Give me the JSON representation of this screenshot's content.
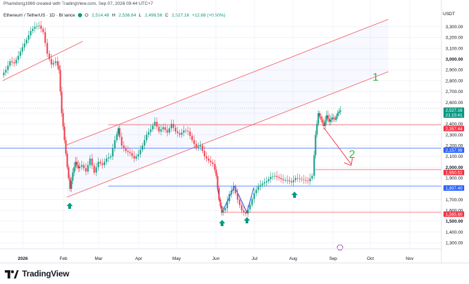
{
  "header": {
    "created_by": "Phamdong1969 created with TradingView.com, Sep 07, 2026 09:44 UTC+7"
  },
  "symbol": {
    "name": "Ethereum / TetherUS · 1D · Binance",
    "open_key": "O",
    "open": "2,514.48",
    "high_key": "H",
    "high": "2,536.64",
    "low_key": "L",
    "low": "2,498.56",
    "close_key": "C",
    "close": "2,527.16",
    "change": "+12.68 (+0.50%)",
    "up_color": "#089981",
    "down_color": "#f23645"
  },
  "currency": "USDT",
  "price_axis": {
    "ticks": [
      "3,300.00",
      "3,200.00",
      "3,100.00",
      "3,000.00",
      "2,900.00",
      "2,800.00",
      "2,700.00",
      "2,600.00",
      "2,500.00",
      "2,400.00",
      "2,300.00",
      "2,200.00",
      "2,100.00",
      "2,000.00",
      "1,900.00",
      "1,800.00",
      "1,700.00",
      "1,600.00",
      "1,500.00",
      "1,400.00",
      "1,300.00"
    ],
    "bold_ticks": [
      "3,000.00",
      "2,000.00",
      "1,500.00"
    ],
    "tags": [
      {
        "label": "2,527.16",
        "sub": "21:15:41",
        "color": "#089981"
      },
      {
        "label": "2,357.44",
        "color": "#f23645"
      },
      {
        "label": "2,157.98",
        "color": "#2962ff"
      },
      {
        "label": "1,950.51",
        "color": "#f23645"
      },
      {
        "label": "1,807.40",
        "color": "#2962ff"
      },
      {
        "label": "1,565.60",
        "color": "#f23645"
      }
    ]
  },
  "time_axis": {
    "labels": [
      "2026",
      "Feb",
      "Mar",
      "Apr",
      "May",
      "Jun",
      "Jul",
      "Aug",
      "Sep",
      "Oct",
      "Nov"
    ],
    "bold_labels": [
      "2026"
    ]
  },
  "annotations": {
    "label_1": "1",
    "label_2": "2",
    "annotation_color": "#3cb34a",
    "channel_color": "#f7525f",
    "level_blue": "#2962ff",
    "arrow_color": "#089981"
  },
  "footer": {
    "brand": "TradingView"
  }
}
